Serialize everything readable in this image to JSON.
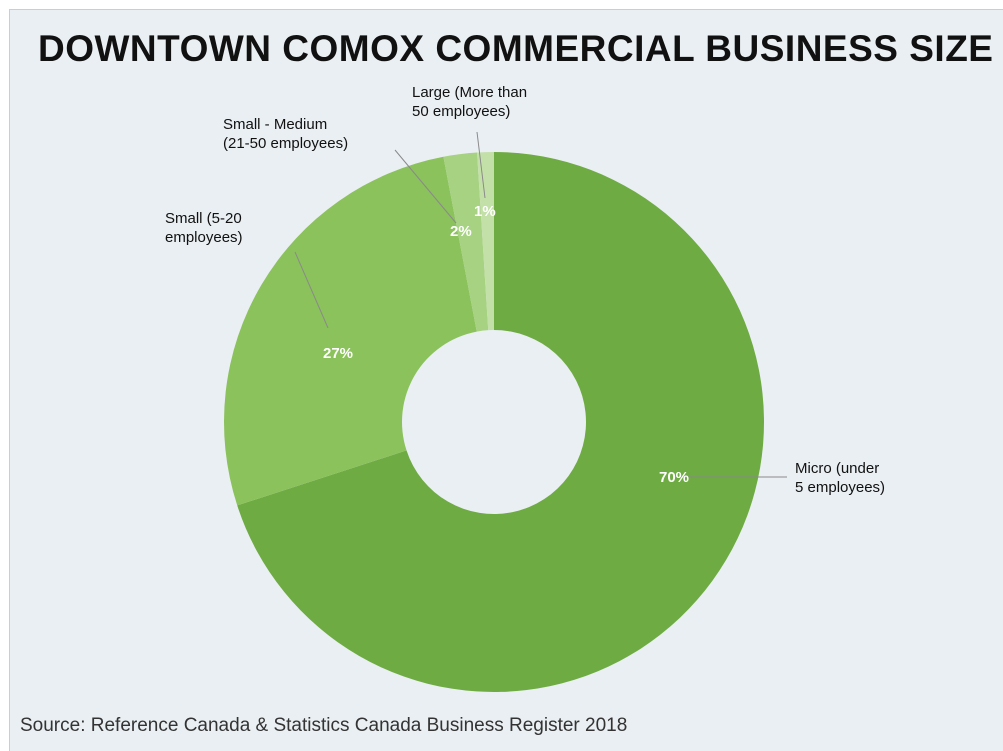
{
  "title": "DOWNTOWN COMOX COMMERCIAL BUSINESS SIZE",
  "source": "Source: Reference Canada & Statistics Canada Business Register 2018",
  "chart_data": {
    "type": "pie",
    "variant": "donut",
    "title": "DOWNTOWN COMOX COMMERCIAL BUSINESS SIZE",
    "slices": [
      {
        "name": "Micro (under 5 employees)",
        "label_lines": [
          "Micro (under",
          "5 employees)"
        ],
        "value": 70,
        "value_label": "70%",
        "color": "#6fab43"
      },
      {
        "name": "Small (5-20 employees)",
        "label_lines": [
          "Small (5-20",
          "employees)"
        ],
        "value": 27,
        "value_label": "27%",
        "color": "#8bc25c"
      },
      {
        "name": "Small - Medium (21-50 employees)",
        "label_lines": [
          "Small - Medium",
          "(21-50 employees)"
        ],
        "value": 2,
        "value_label": "2%",
        "color": "#a6d281"
      },
      {
        "name": "Large (More than 50 employees)",
        "label_lines": [
          "Large (More than",
          "50 employees)"
        ],
        "value": 1,
        "value_label": "1%",
        "color": "#c4e0a9"
      }
    ],
    "legend": "none",
    "background": "#e9eff2"
  }
}
